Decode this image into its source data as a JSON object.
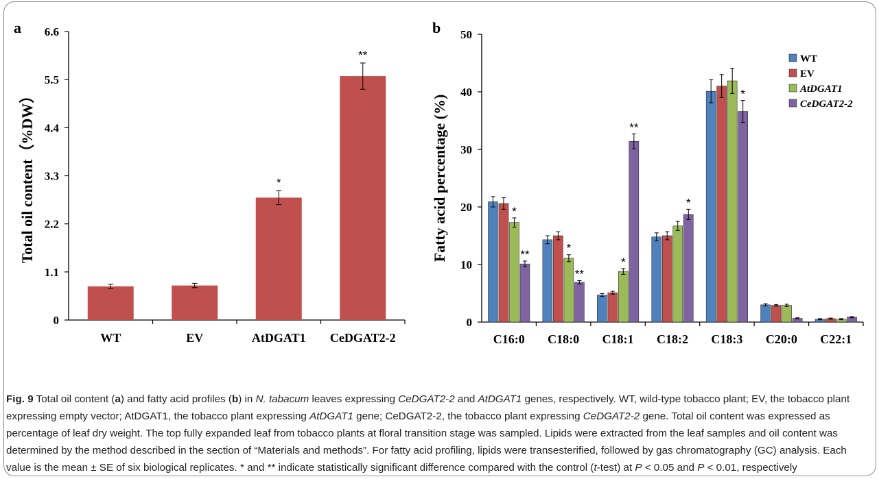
{
  "colors": {
    "bar_a": "#c0504d",
    "WT": "#4f81bd",
    "EV": "#c0504d",
    "AtDGAT1": "#9bbb59",
    "CeDGAT2-2": "#8064a2"
  },
  "chart_data": [
    {
      "type": "bar",
      "panel_label": "a",
      "categories": [
        "WT",
        "EV",
        "AtDGAT1",
        "CeDGAT2-2"
      ],
      "values": [
        0.77,
        0.79,
        2.8,
        5.58
      ],
      "errors": [
        0.05,
        0.05,
        0.16,
        0.3
      ],
      "significance": [
        "",
        "",
        "*",
        "**"
      ],
      "ylabel": "Total oil content（%DW）",
      "ylim": [
        0,
        6.6
      ],
      "yticks": [
        "0",
        "1.1",
        "2.2",
        "3.3",
        "4.4",
        "5.5",
        "6.6"
      ]
    },
    {
      "type": "bar",
      "panel_label": "b",
      "categories": [
        "C16:0",
        "C18:0",
        "C18:1",
        "C18:2",
        "C18:3",
        "C20:0",
        "C22:1"
      ],
      "series": [
        {
          "name": "WT",
          "values": [
            20.9,
            14.3,
            4.7,
            14.8,
            40.1,
            3.0,
            0.5
          ],
          "errors": [
            0.9,
            0.7,
            0.25,
            0.7,
            2.0,
            0.2,
            0.1
          ],
          "significance": [
            "",
            "",
            "",
            "",
            "",
            "",
            ""
          ]
        },
        {
          "name": "EV",
          "values": [
            20.6,
            15.0,
            5.1,
            15.0,
            41.0,
            2.9,
            0.6
          ],
          "errors": [
            1.0,
            0.7,
            0.25,
            0.7,
            2.0,
            0.15,
            0.1
          ],
          "significance": [
            "",
            "",
            "",
            "",
            "",
            "",
            ""
          ]
        },
        {
          "name": "AtDGAT1",
          "values": [
            17.3,
            11.1,
            8.8,
            16.7,
            41.9,
            2.9,
            0.5
          ],
          "errors": [
            0.8,
            0.6,
            0.5,
            0.8,
            2.2,
            0.2,
            0.1
          ],
          "significance": [
            "*",
            "*",
            "*",
            "",
            "",
            "",
            ""
          ]
        },
        {
          "name": "CeDGAT2-2",
          "values": [
            10.1,
            6.9,
            31.4,
            18.7,
            36.6,
            0.65,
            0.85
          ],
          "errors": [
            0.5,
            0.3,
            1.3,
            0.9,
            1.9,
            0.1,
            0.1
          ],
          "significance": [
            "**",
            "**",
            "**",
            "*",
            "*",
            "",
            ""
          ]
        }
      ],
      "ylabel": "Fatty acid percentage (%)",
      "ylim": [
        0,
        50
      ],
      "yticks": [
        "0",
        "10",
        "20",
        "30",
        "40",
        "50"
      ],
      "legend_position": "top-right"
    }
  ],
  "caption": {
    "fig_label": "Fig. 9",
    "text_1": " Total oil content (",
    "a": "a",
    "text_2": ") and fatty acid profiles (",
    "b": "b",
    "text_3": ") in ",
    "species": "N. tabacum",
    "text_4": " leaves expressing ",
    "gene1": "CeDGAT2-2",
    "text_5": " and ",
    "gene2": "AtDGAT1",
    "text_6": " genes, respectively. WT, wild-type tobacco plant; EV, the tobacco plant expressing empty vector; AtDGAT1, the tobacco plant expressing ",
    "gene3": "AtDGAT1",
    "text_7": " gene; CeDGAT2-2, the tobacco plant expressing ",
    "gene4": "CeDGAT2-2",
    "text_8": " gene. Total oil content was expressed as percentage of leaf dry weight. The top fully expanded leaf from tobacco plants at floral transition stage was sampled. Lipids were extracted from the leaf samples and oil content was determined by the method described in the section of “Materials and methods”. For fatty acid profiling, lipids were transesterified, followed by gas chromatography (GC) analysis. Each value is the mean ± SE of six biological replicates. * and ** indicate statistically significant difference compared with the control (",
    "ttest": "t",
    "text_9": "-test) at ",
    "p1": "P",
    "text_10": " < 0.05 and ",
    "p2": "P",
    "text_11": " < 0.01, respectively"
  }
}
